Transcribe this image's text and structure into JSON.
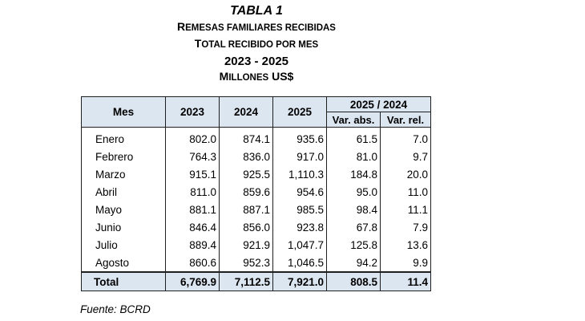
{
  "title": {
    "tabla": "TABLA 1",
    "line1_first": "R",
    "line1_rest": "EMESAS FAMILIARES RECIBIDAS",
    "line2_first": "T",
    "line2_rest": "OTAL RECIBIDO POR MES",
    "years": "2023 - 2025",
    "line4_first": "M",
    "line4_rest": "ILLONES",
    "line4_unit": "US$"
  },
  "table": {
    "headers": {
      "mes": "Mes",
      "y2023": "2023",
      "y2024": "2024",
      "y2025": "2025",
      "group": "2025 / 2024",
      "var_abs": "Var. abs.",
      "var_rel": "Var. rel."
    },
    "rows": [
      {
        "mes": "Enero",
        "y2023": "802.0",
        "y2024": "874.1",
        "y2025": "935.6",
        "var_abs": "61.5",
        "var_rel": "7.0"
      },
      {
        "mes": "Febrero",
        "y2023": "764.3",
        "y2024": "836.0",
        "y2025": "917.0",
        "var_abs": "81.0",
        "var_rel": "9.7"
      },
      {
        "mes": "Marzo",
        "y2023": "915.1",
        "y2024": "925.5",
        "y2025": "1,110.3",
        "var_abs": "184.8",
        "var_rel": "20.0"
      },
      {
        "mes": "Abril",
        "y2023": "811.0",
        "y2024": "859.6",
        "y2025": "954.6",
        "var_abs": "95.0",
        "var_rel": "11.0"
      },
      {
        "mes": "Mayo",
        "y2023": "881.1",
        "y2024": "887.1",
        "y2025": "985.5",
        "var_abs": "98.4",
        "var_rel": "11.1"
      },
      {
        "mes": "Junio",
        "y2023": "846.4",
        "y2024": "856.0",
        "y2025": "923.8",
        "var_abs": "67.8",
        "var_rel": "7.9"
      },
      {
        "mes": "Julio",
        "y2023": "889.4",
        "y2024": "921.9",
        "y2025": "1,047.7",
        "var_abs": "125.8",
        "var_rel": "13.6"
      },
      {
        "mes": "Agosto",
        "y2023": "860.6",
        "y2024": "952.3",
        "y2025": "1,046.5",
        "var_abs": "94.2",
        "var_rel": "9.9"
      }
    ],
    "total": {
      "mes": "Total",
      "y2023": "6,769.9",
      "y2024": "7,112.5",
      "y2025": "7,921.0",
      "var_abs": "808.5",
      "var_rel": "11.4"
    }
  },
  "source": "Fuente: BCRD"
}
